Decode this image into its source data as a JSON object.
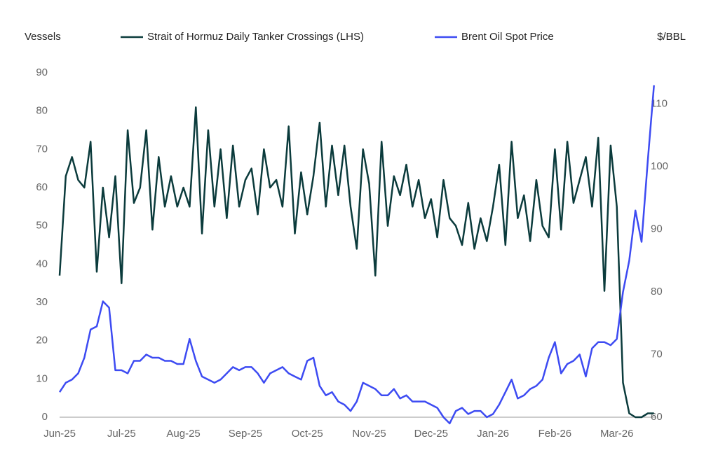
{
  "chart_data": {
    "type": "line",
    "y_label": "Vessels",
    "y2_label": "$/BBL",
    "categories": [
      "Jun-25",
      null,
      null,
      null,
      null,
      null,
      null,
      null,
      null,
      null,
      "Jul-25",
      null,
      null,
      null,
      null,
      null,
      null,
      null,
      null,
      null,
      "Aug-25",
      null,
      null,
      null,
      null,
      null,
      null,
      null,
      null,
      null,
      "Sep-25",
      null,
      null,
      null,
      null,
      null,
      null,
      null,
      null,
      null,
      "Oct-25",
      null,
      null,
      null,
      null,
      null,
      null,
      null,
      null,
      null,
      "Nov-25",
      null,
      null,
      null,
      null,
      null,
      null,
      null,
      null,
      null,
      "Dec-25",
      null,
      null,
      null,
      null,
      null,
      null,
      null,
      null,
      null,
      "Jan-26",
      null,
      null,
      null,
      null,
      null,
      null,
      null,
      null,
      null,
      "Feb-26",
      null,
      null,
      null,
      null,
      null,
      null,
      null,
      null,
      null,
      "Mar-26",
      null,
      null,
      null,
      null,
      null,
      null
    ],
    "series": [
      {
        "name": "Strait of Hormuz Daily Tanker Crossings (LHS)",
        "color": "#0b3b3c",
        "values": [
          37,
          63,
          68,
          62,
          60,
          72,
          38,
          60,
          47,
          63,
          35,
          75,
          56,
          60,
          75,
          49,
          68,
          55,
          63,
          55,
          60,
          55,
          81,
          48,
          75,
          55,
          70,
          52,
          71,
          55,
          62,
          65,
          53,
          70,
          60,
          62,
          55,
          76,
          48,
          64,
          53,
          63,
          77,
          55,
          71,
          58,
          71,
          55,
          44,
          70,
          61,
          37,
          72,
          50,
          63,
          58,
          66,
          55,
          62,
          52,
          57,
          47,
          62,
          52,
          50,
          45,
          56,
          44,
          52,
          46,
          55,
          66,
          45,
          72,
          52,
          58,
          46,
          62,
          50,
          47,
          70,
          49,
          72,
          56,
          62,
          68,
          55,
          73,
          33,
          71,
          55,
          9,
          1,
          0,
          0,
          1,
          1
        ]
      },
      {
        "name": "Brent Oil Spot Price",
        "color": "#3d4bf2",
        "axis": "y2",
        "values": [
          64,
          65.5,
          66,
          67,
          69.5,
          74,
          74.5,
          78.5,
          77.5,
          67.5,
          67.5,
          67,
          69,
          69,
          70,
          69.5,
          69.5,
          69,
          69,
          68.5,
          68.5,
          72.5,
          69,
          66.5,
          66,
          65.5,
          66,
          67,
          68,
          67.5,
          68,
          68,
          67,
          65.5,
          67,
          67.5,
          68,
          67,
          66.5,
          66,
          69,
          69.5,
          65,
          63.5,
          64,
          62.5,
          62,
          61,
          62.5,
          65.5,
          65,
          64.5,
          63.5,
          63.5,
          64.5,
          63,
          63.5,
          62.5,
          62.5,
          62.5,
          62,
          61.5,
          60,
          59,
          61,
          61.5,
          60.5,
          61,
          61,
          60,
          60.5,
          62,
          64,
          66,
          63,
          63.5,
          64.5,
          65,
          66,
          69.5,
          72,
          67,
          68.5,
          69,
          70,
          66.5,
          71,
          72,
          72,
          71.5,
          72.5,
          80,
          85,
          93,
          88,
          101,
          113
        ]
      }
    ],
    "ylim": [
      0,
      90
    ],
    "yticks": [
      0,
      10,
      20,
      30,
      40,
      50,
      60,
      70,
      80,
      90
    ],
    "y2lim": [
      60,
      115
    ],
    "y2ticks": [
      60,
      70,
      80,
      90,
      100,
      110
    ]
  }
}
